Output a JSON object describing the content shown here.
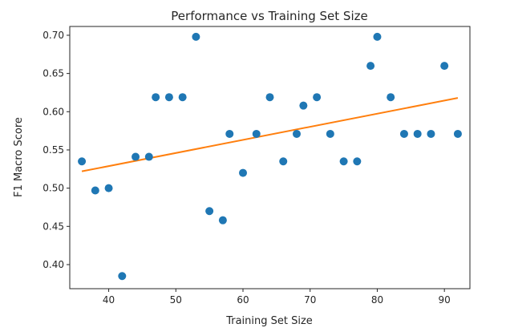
{
  "chart_data": {
    "type": "scatter",
    "title": "Performance vs Training Set Size",
    "xlabel": "Training Set Size",
    "ylabel": "F1 Macro Score",
    "xlim": [
      34.2,
      93.8
    ],
    "ylim": [
      0.3685,
      0.7115
    ],
    "xticks": [
      40,
      50,
      60,
      70,
      80,
      90
    ],
    "yticks": [
      0.4,
      0.45,
      0.5,
      0.55,
      0.6,
      0.65,
      0.7
    ],
    "xtick_labels": [
      "40",
      "50",
      "60",
      "70",
      "80",
      "90"
    ],
    "ytick_labels": [
      "0.40",
      "0.45",
      "0.50",
      "0.55",
      "0.60",
      "0.65",
      "0.70"
    ],
    "grid": false,
    "series": [
      {
        "kind": "points",
        "color": "#1f77b4",
        "x": [
          36,
          38,
          40,
          42,
          44,
          46,
          47,
          49,
          51,
          53,
          55,
          57,
          58,
          60,
          62,
          64,
          66,
          68,
          69,
          71,
          73,
          75,
          77,
          79,
          80,
          82,
          84,
          86,
          88,
          90,
          92
        ],
        "y": [
          0.535,
          0.497,
          0.5,
          0.385,
          0.541,
          0.541,
          0.619,
          0.619,
          0.619,
          0.698,
          0.47,
          0.458,
          0.571,
          0.52,
          0.571,
          0.619,
          0.535,
          0.571,
          0.608,
          0.619,
          0.571,
          0.535,
          0.535,
          0.66,
          0.698,
          0.619,
          0.571,
          0.571,
          0.571,
          0.66,
          0.571
        ]
      },
      {
        "kind": "fit-line",
        "color": "#ff7f0e",
        "x": [
          36,
          92
        ],
        "y": [
          0.522,
          0.618
        ]
      }
    ]
  }
}
